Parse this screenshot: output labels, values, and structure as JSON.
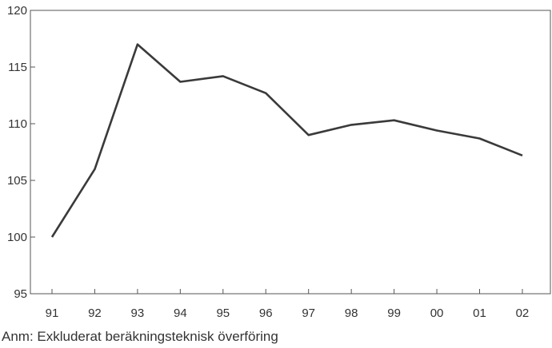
{
  "chart_data": {
    "type": "line",
    "categories": [
      "91",
      "92",
      "93",
      "94",
      "95",
      "96",
      "97",
      "98",
      "99",
      "00",
      "01",
      "02"
    ],
    "series": [
      {
        "values": [
          100,
          106,
          117,
          113.7,
          114.2,
          112.7,
          109,
          109.9,
          110.3,
          109.4,
          108.7,
          107.2
        ]
      }
    ],
    "yticks": [
      95,
      100,
      105,
      110,
      115,
      120
    ],
    "ylim": [
      95,
      120
    ],
    "grid": false,
    "line_color": "#3a3a3a",
    "axis_color": "#555555"
  },
  "note": "Anm: Exkluderat beräkningsteknisk överföring"
}
